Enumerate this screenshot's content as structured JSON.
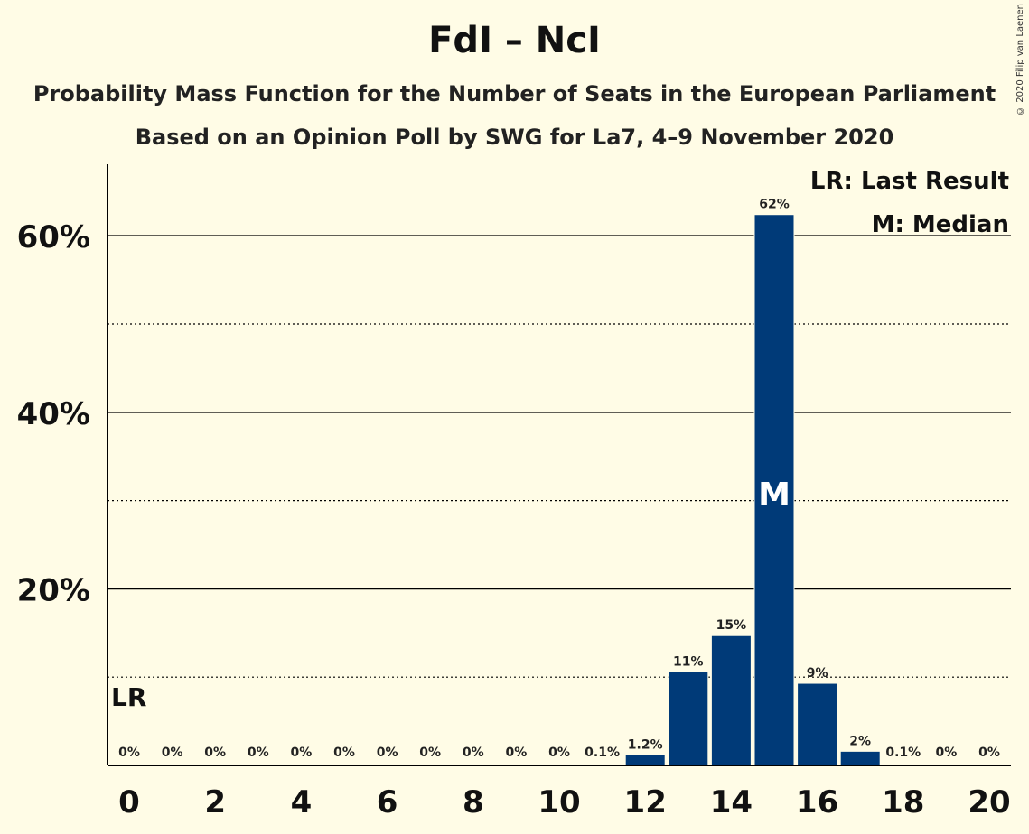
{
  "title": "FdI – NcI",
  "subtitle1": "Probability Mass Function for the Number of Seats in the European Parliament",
  "subtitle2": "Based on an Opinion Poll by SWG for La7, 4–9 November 2020",
  "copyright": "© 2020 Filip van Laenen",
  "chart_data": {
    "type": "bar",
    "categories": [
      0,
      1,
      2,
      3,
      4,
      5,
      6,
      7,
      8,
      9,
      10,
      11,
      12,
      13,
      14,
      15,
      16,
      17,
      18,
      19,
      20
    ],
    "values": [
      0,
      0,
      0,
      0,
      0,
      0,
      0,
      0,
      0,
      0,
      0,
      0.1,
      1.2,
      10.6,
      14.7,
      62.4,
      9.3,
      1.6,
      0.1,
      0,
      0
    ],
    "data_labels": [
      "0%",
      "0%",
      "0%",
      "0%",
      "0%",
      "0%",
      "0%",
      "0%",
      "0%",
      "0%",
      "0%",
      "0.1%",
      "1.2%",
      "11%",
      "15%",
      "62%",
      "9%",
      "2%",
      "0.1%",
      "0%",
      "0%"
    ],
    "x_tick_labels": [
      "0",
      "2",
      "4",
      "6",
      "8",
      "10",
      "12",
      "14",
      "16",
      "18",
      "20"
    ],
    "x_tick_values": [
      0,
      2,
      4,
      6,
      8,
      10,
      12,
      14,
      16,
      18,
      20
    ],
    "y_tick_labels": [
      "20%",
      "40%",
      "60%"
    ],
    "y_tick_values": [
      20,
      40,
      60
    ],
    "ylim": [
      0,
      68
    ],
    "grid_major": [
      20,
      40,
      60
    ],
    "grid_minor": [
      10,
      30,
      50
    ],
    "median": 15,
    "median_label": "M",
    "last_result": 0,
    "last_result_label": "LR",
    "legend": [
      "LR: Last Result",
      "M: Median"
    ],
    "legend_position": "top-right",
    "colors": {
      "bar": "#003A78",
      "background": "#FFFCE6",
      "axis": "#000000"
    }
  }
}
